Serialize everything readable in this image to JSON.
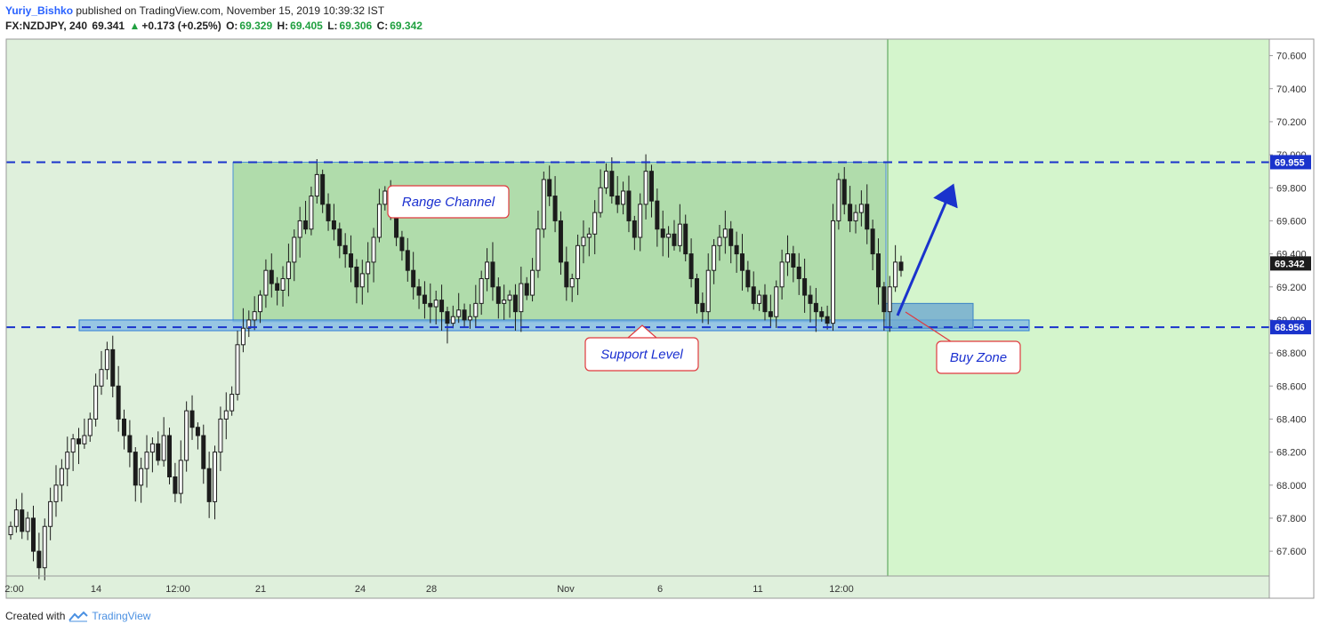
{
  "header": {
    "author": "Yuriy_Bishko",
    "published": "published on TradingView.com, November 15, 2019 10:39:32 IST",
    "symbol": "FX:NZDJPY, 240",
    "last": "69.341",
    "change": "+0.173 (+0.25%)",
    "o_label": "O:",
    "o_value": "69.329",
    "h_label": "H:",
    "h_value": "69.405",
    "l_label": "L:",
    "l_value": "69.306",
    "c_label": "C:",
    "c_value": "69.342"
  },
  "footer": {
    "created": "Created with",
    "brand": "TradingView"
  },
  "colors": {
    "plot_bg": "#dff0dc",
    "future_bg": "#d4f5cc",
    "range_box": "#a8d8a2",
    "support_box": "#7fb8e6",
    "buy_box": "#6ea9d0",
    "dash_line": "#1a33cc",
    "arrow": "#1a33cc",
    "label_border": "#e0393e",
    "label_text": "#1a2fd0",
    "candle_up": "#ffffff",
    "candle_down": "#1c1c1c"
  },
  "chart_data": {
    "type": "candlestick",
    "symbol": "FX:NZDJPY",
    "timeframe": "240",
    "ylim": [
      67.45,
      70.7
    ],
    "y_ticks": [
      "70.600",
      "70.400",
      "70.200",
      "70.000",
      "69.800",
      "69.600",
      "69.400",
      "69.200",
      "69.000",
      "68.800",
      "68.600",
      "68.400",
      "68.200",
      "68.000",
      "67.800",
      "67.600"
    ],
    "x_ticks": [
      "2:00",
      "14",
      "12:00",
      "21",
      "24",
      "28",
      "Nov",
      "6",
      "11",
      "12:00"
    ],
    "price_labels": {
      "resistance": "69.955",
      "current": "69.342",
      "support": "68.956"
    },
    "levels": {
      "resistance": 69.955,
      "support": 68.956
    },
    "annotations": {
      "range": "Range Channel",
      "support": "Support Level",
      "buy": "Buy Zone"
    },
    "zones": {
      "range": {
        "top": 69.955,
        "bottom": 68.99
      },
      "support": {
        "top": 69.0,
        "bottom": 68.935
      },
      "buy": {
        "top": 69.1,
        "bottom": 68.95
      }
    },
    "candles_close": [
      67.75,
      67.85,
      67.72,
      67.8,
      67.6,
      67.5,
      67.75,
      67.9,
      68.0,
      68.1,
      68.2,
      68.28,
      68.25,
      68.3,
      68.4,
      68.6,
      68.7,
      68.82,
      68.6,
      68.4,
      68.3,
      68.2,
      68.0,
      68.1,
      68.2,
      68.25,
      68.15,
      68.3,
      68.05,
      67.95,
      68.15,
      68.45,
      68.35,
      68.3,
      68.1,
      67.9,
      68.2,
      68.4,
      68.45,
      68.55,
      68.85,
      68.95,
      69.0,
      69.05,
      69.15,
      69.3,
      69.22,
      69.18,
      69.25,
      69.35,
      69.5,
      69.6,
      69.55,
      69.75,
      69.88,
      69.7,
      69.6,
      69.55,
      69.45,
      69.4,
      69.32,
      69.2,
      69.28,
      69.35,
      69.5,
      69.7,
      69.78,
      69.65,
      69.5,
      69.42,
      69.3,
      69.2,
      69.15,
      69.1,
      69.08,
      69.12,
      69.05,
      68.98,
      69.02,
      69.06,
      69.0,
      69.02,
      69.1,
      69.25,
      69.35,
      69.2,
      69.1,
      69.12,
      69.15,
      69.05,
      69.22,
      69.15,
      69.3,
      69.55,
      69.85,
      69.75,
      69.6,
      69.35,
      69.2,
      69.25,
      69.45,
      69.5,
      69.52,
      69.65,
      69.8,
      69.9,
      69.75,
      69.7,
      69.78,
      69.6,
      69.5,
      69.7,
      69.9,
      69.72,
      69.55,
      69.5,
      69.52,
      69.45,
      69.58,
      69.4,
      69.25,
      69.1,
      69.05,
      69.3,
      69.45,
      69.5,
      69.55,
      69.45,
      69.4,
      69.3,
      69.2,
      69.1,
      69.15,
      69.05,
      69.02,
      69.2,
      69.35,
      69.4,
      69.32,
      69.25,
      69.15,
      69.1,
      69.05,
      69.02,
      68.98,
      69.6,
      69.85,
      69.7,
      69.6,
      69.65,
      69.7,
      69.55,
      69.4,
      69.2,
      69.05,
      69.2,
      69.35,
      69.3
    ]
  }
}
